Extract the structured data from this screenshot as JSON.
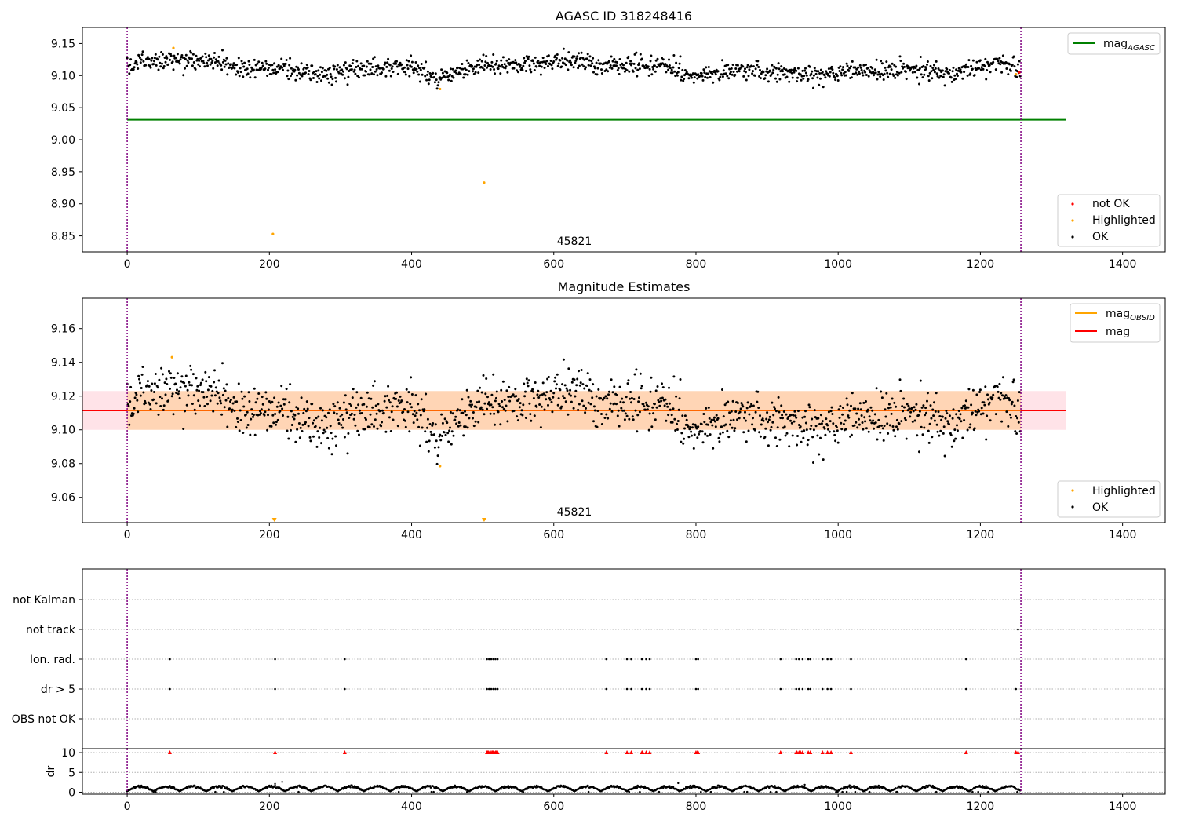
{
  "figure": {
    "top_title": "AGASC ID 318248416",
    "mid_title": "Magnitude Estimates",
    "obsid_label": "45821"
  },
  "colors": {
    "ok": "#000000",
    "highlighted": "#ffa500",
    "not_ok": "#ff0000",
    "mag_agasc": "#008000",
    "mag": "#ff0000",
    "mag_obsid": "#ffa500",
    "band_fill": "#ffc0cb",
    "obsid_boundary": "#800080"
  },
  "chart_data": [
    {
      "id": "top",
      "type": "scatter",
      "title": "AGASC ID 318248416",
      "xlim": [
        -63,
        1460
      ],
      "ylim": [
        8.825,
        9.175
      ],
      "xticks": [
        0,
        200,
        400,
        600,
        800,
        1000,
        1200,
        1400
      ],
      "yticks": [
        8.85,
        8.9,
        8.95,
        9.0,
        9.05,
        9.1,
        9.15
      ],
      "ytick_labels": [
        "8.85",
        "8.90",
        "8.95",
        "9.00",
        "9.05",
        "9.10",
        "9.15"
      ],
      "n_points": 1257,
      "ok_series": {
        "name": "OK",
        "baseline": 9.111,
        "noise": 0.009
      },
      "highlighted_points": [
        [
          65,
          9.143
        ],
        [
          205,
          8.853
        ],
        [
          440,
          9.079
        ],
        [
          502,
          8.933
        ],
        [
          1250,
          9.102
        ]
      ],
      "not_ok_points": [
        [
          1255,
          9.105
        ]
      ],
      "mag_agasc": {
        "value": 9.031,
        "x_range": [
          0,
          1320
        ]
      },
      "obsid_boundaries": [
        0,
        1257
      ],
      "legend_lines": [
        {
          "name": "mag",
          "subscript": "AGASC"
        }
      ],
      "legend_markers": [
        "not OK",
        "Highlighted",
        "OK"
      ],
      "legend_position": "upper-right / lower-right"
    },
    {
      "id": "middle",
      "type": "scatter",
      "title": "Magnitude Estimates",
      "xlim": [
        -63,
        1460
      ],
      "ylim": [
        9.045,
        9.178
      ],
      "xticks": [
        0,
        200,
        400,
        600,
        800,
        1000,
        1200,
        1400
      ],
      "yticks": [
        9.06,
        9.08,
        9.1,
        9.12,
        9.14,
        9.16
      ],
      "ytick_labels": [
        "9.06",
        "9.08",
        "9.10",
        "9.12",
        "9.14",
        "9.16"
      ],
      "mag": {
        "value": 9.1115,
        "x_range": [
          -63,
          1320
        ]
      },
      "mag_band": [
        9.1,
        9.123
      ],
      "mag_obsid": {
        "value": 9.1115,
        "std_band": [
          9.1,
          9.123
        ],
        "x_range": [
          0,
          1257
        ]
      },
      "highlighted_points": [
        [
          63,
          9.143
        ],
        [
          440,
          9.0785
        ]
      ],
      "offscale_markers": [
        207,
        502
      ],
      "obsid_boundaries": [
        0,
        1257
      ],
      "legend_lines": [
        {
          "name": "mag",
          "subscript": "OBSID"
        },
        {
          "name": "mag",
          "subscript": ""
        }
      ],
      "legend_markers": [
        "Highlighted",
        "OK"
      ]
    },
    {
      "id": "flags",
      "type": "scatter",
      "xlim": [
        -63,
        1460
      ],
      "categories": [
        "not Kalman",
        "not track",
        "Ion. rad.",
        "dr > 5",
        "OBS not OK"
      ],
      "flagged_x": {
        "not Kalman": [],
        "not track": [
          1253
        ],
        "Ion. rad.": [
          60,
          208,
          306,
          506,
          509,
          512,
          515,
          518,
          521,
          674,
          703,
          709,
          724,
          730,
          735,
          800,
          803,
          919,
          941,
          945,
          950,
          958,
          961,
          978,
          985,
          990,
          1018,
          1180
        ],
        "dr > 5": [
          60,
          208,
          306,
          506,
          509,
          512,
          515,
          518,
          521,
          674,
          703,
          709,
          724,
          730,
          735,
          800,
          803,
          919,
          941,
          945,
          950,
          958,
          961,
          978,
          985,
          990,
          1018,
          1180,
          1250
        ],
        "OBS not OK": []
      }
    },
    {
      "id": "dr",
      "type": "scatter",
      "ylabel": "dr",
      "xlim": [
        -63,
        1460
      ],
      "ylim": [
        -0.5,
        11
      ],
      "yticks": [
        0,
        5,
        10
      ],
      "ytick_labels": [
        "0",
        "5",
        "10"
      ],
      "xticks": [
        0,
        200,
        400,
        600,
        800,
        1000,
        1200,
        1400
      ],
      "dr_threshold": 10,
      "clipped_marker_x": [
        60,
        208,
        306,
        506,
        507,
        508,
        510,
        511,
        513,
        514,
        515,
        516,
        518,
        519,
        521,
        674,
        703,
        709,
        724,
        725,
        730,
        735,
        800,
        802,
        803,
        919,
        941,
        942,
        945,
        947,
        950,
        958,
        961,
        978,
        985,
        990,
        1018,
        1180,
        1250,
        1253
      ],
      "outliers": [
        [
          208,
          2.1
        ],
        [
          218,
          2.6
        ],
        [
          775,
          2.3
        ],
        [
          953,
          1.9
        ]
      ],
      "typical_range": [
        0,
        2
      ]
    }
  ]
}
